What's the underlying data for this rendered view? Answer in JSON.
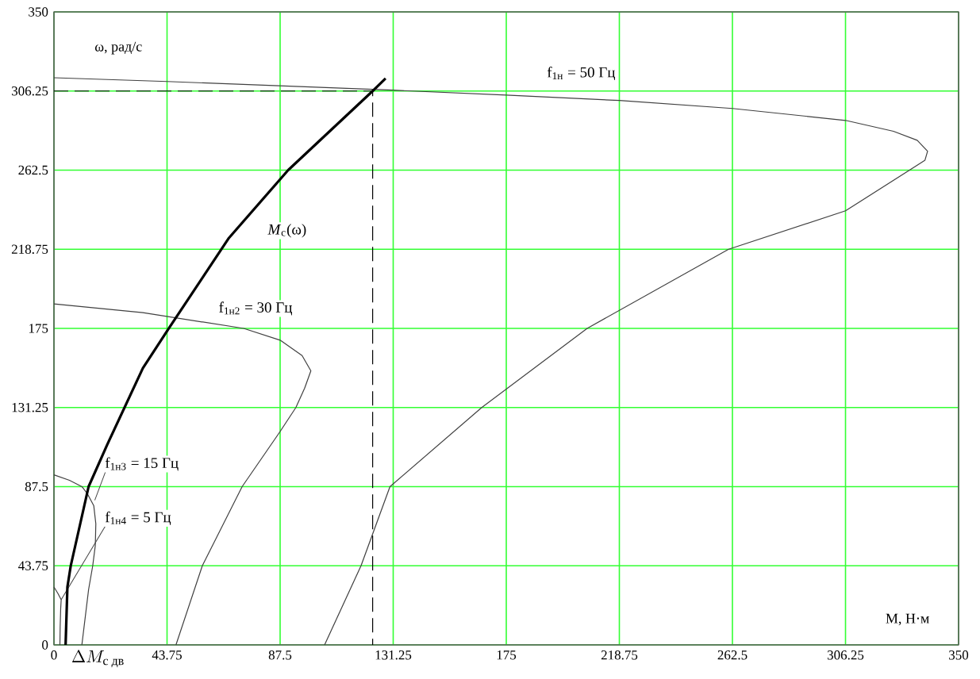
{
  "chart_data": {
    "type": "line",
    "xlabel": "M, Н·м",
    "ylabel": "ω, рад/с",
    "xlim": [
      0,
      350
    ],
    "ylim": [
      0,
      350
    ],
    "xticks": [
      0,
      43.75,
      87.5,
      131.25,
      175,
      218.75,
      262.5,
      306.25,
      350
    ],
    "yticks": [
      0,
      43.75,
      87.5,
      131.25,
      175,
      218.75,
      262.5,
      306.25,
      350
    ],
    "grid": true,
    "marker": "none",
    "annotations": [
      "\\Delta M_{\\mbox{\\footnotesize с дв}}"
    ],
    "series": [
      {
        "name": "f$_{1н}$ = 50 Гц",
        "color": "#404040",
        "line_style": "solid",
        "x": [
          0,
          43.75,
          131.25,
          175,
          218.75,
          262.5,
          306.25,
          324.8,
          334,
          338,
          337,
          331,
          306.25,
          261,
          206.3,
          165.5,
          130,
          118.8,
          104.7
        ],
        "values": [
          313.6,
          311.5,
          306.7,
          304,
          301,
          296.6,
          290,
          284,
          279,
          273,
          268,
          262.5,
          240,
          218.75,
          175,
          131.25,
          87.5,
          43.75,
          0
        ]
      },
      {
        "name": "f$_{1н2}$ = 30 Гц",
        "color": "#404040",
        "line_style": "solid",
        "x": [
          0,
          34.4,
          73.4,
          87.5,
          96,
          99.4,
          97,
          93.6,
          87.5,
          72.8,
          57.4,
          47.2
        ],
        "values": [
          188.5,
          183.7,
          175,
          168.5,
          160,
          151.5,
          142,
          131.25,
          118,
          87.5,
          43.75,
          0
        ]
      },
      {
        "name": "f$_{1н3}$ = 15 Гц",
        "color": "#404040",
        "line_style": "solid",
        "x": [
          0,
          6,
          10.8,
          12.9,
          15.4,
          16.2,
          16,
          15,
          13.4,
          10.8
        ],
        "values": [
          94,
          91,
          87.5,
          83.7,
          77,
          67,
          55,
          43.75,
          30.6,
          0
        ]
      },
      {
        "name": "f$_{1н4}$ = 5 Гц",
        "color": "#404040",
        "line_style": "solid",
        "x": [
          0,
          1.5,
          2.8,
          2.6,
          2.4,
          2.3
        ],
        "values": [
          32,
          28.5,
          25,
          20,
          10,
          0
        ]
      },
      {
        "name": "*M*$_{с}$(ω)",
        "color": "#000000",
        "line_style": "solid",
        "x": [
          4.5,
          5.2,
          6.5,
          13.4,
          20.6,
          34.4,
          44.2,
          67.7,
          90.6,
          123.3,
          128.3
        ],
        "values": [
          0,
          32,
          43.75,
          87.5,
          110.7,
          153,
          174.5,
          225,
          262.5,
          306.25,
          313.2
        ]
      },
      {
        "color": "#000000",
        "line_style": "dashed",
        "x": [
          0,
          123.3,
          123.3
        ],
        "values": [
          306.25,
          306.25,
          0
        ]
      }
    ]
  }
}
